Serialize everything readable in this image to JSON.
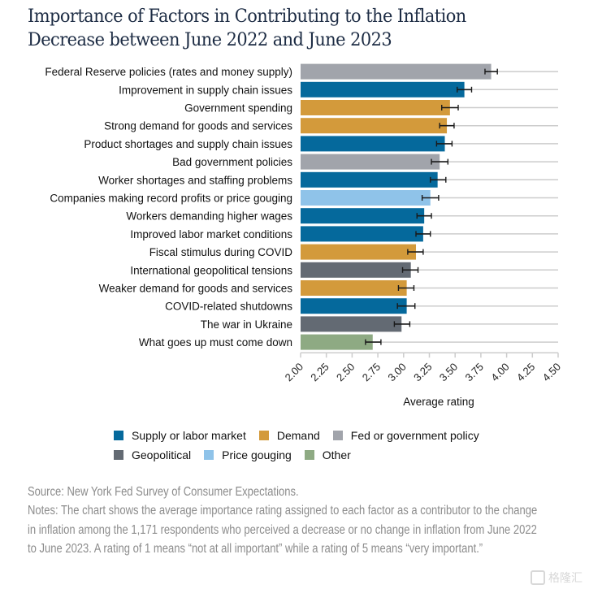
{
  "title_lines": [
    "Importance of Factors in Contributing to the Inflation",
    "Decrease between June 2022 and June 2023"
  ],
  "colors": {
    "supply": "#05699c",
    "demand": "#d39a3b",
    "fed": "#a1a4ab",
    "geo": "#636a73",
    "gouging": "#8fc3e9",
    "other": "#8eaa83"
  },
  "chart_data": {
    "type": "bar",
    "orientation": "horizontal",
    "title": "Importance of Factors in Contributing to the Inflation Decrease between June 2022 and June 2023",
    "xlabel": "Average rating",
    "ylabel": "",
    "xlim": [
      2.0,
      4.5
    ],
    "xticks": [
      "2.00",
      "2.25",
      "2.50",
      "2.75",
      "3.00",
      "3.25",
      "3.50",
      "3.75",
      "4.00",
      "4.25",
      "4.50"
    ],
    "grid": "horizontal row lines",
    "legend_position": "bottom",
    "categories": [
      "Federal Reserve policies (rates and money supply)",
      "Improvement in supply chain issues",
      "Government spending",
      "Strong demand for goods and services",
      "Product shortages and supply chain issues",
      "Bad government policies",
      "Worker shortages and staffing problems",
      "Companies making record profits or price gouging",
      "Workers demanding higher wages",
      "Improved labor market conditions",
      "Fiscal stimulus during COVID",
      "International geopolitical tensions",
      "Weaker demand for goods and services",
      "COVID-related shutdowns",
      "The war in Ukraine",
      "What goes up must come down"
    ],
    "values": [
      3.85,
      3.59,
      3.45,
      3.42,
      3.4,
      3.35,
      3.33,
      3.26,
      3.2,
      3.19,
      3.12,
      3.07,
      3.03,
      3.03,
      2.98,
      2.7
    ],
    "error_low": [
      3.79,
      3.52,
      3.37,
      3.35,
      3.32,
      3.27,
      3.26,
      3.18,
      3.13,
      3.12,
      3.04,
      2.99,
      2.95,
      2.94,
      2.91,
      2.63
    ],
    "error_high": [
      3.91,
      3.66,
      3.53,
      3.49,
      3.47,
      3.43,
      3.41,
      3.34,
      3.27,
      3.26,
      3.19,
      3.14,
      3.1,
      3.11,
      3.06,
      2.78
    ],
    "groups": [
      "fed",
      "supply",
      "demand",
      "demand",
      "supply",
      "fed",
      "supply",
      "gouging",
      "supply",
      "supply",
      "demand",
      "geo",
      "demand",
      "supply",
      "geo",
      "other"
    ],
    "legend": [
      {
        "key": "supply",
        "label": "Supply or labor market"
      },
      {
        "key": "demand",
        "label": "Demand"
      },
      {
        "key": "fed",
        "label": "Fed or government policy"
      },
      {
        "key": "geo",
        "label": "Geopolitical"
      },
      {
        "key": "gouging",
        "label": "Price gouging"
      },
      {
        "key": "other",
        "label": "Other"
      }
    ]
  },
  "footer": {
    "source": "Source: New York Fed Survey of Consumer Expectations.",
    "notes": "Notes: The chart shows the average importance rating assigned to each factor as a contributor to the change in inflation among the 1,171 respondents who perceived a decrease or no change in inflation from June 2022 to June 2023. A rating of 1 means “not at all important” while a rating of 5 means “very important.”"
  },
  "watermark": "格隆汇"
}
